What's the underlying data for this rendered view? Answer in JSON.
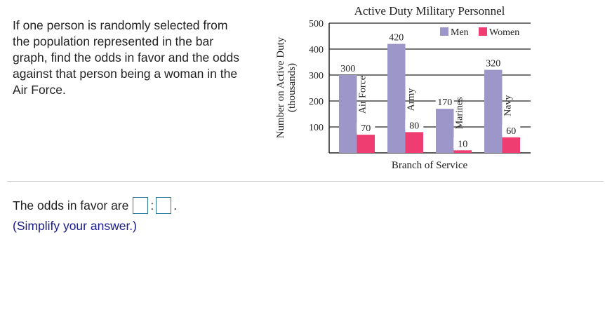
{
  "question": {
    "text": "If one person is randomly selected from the population represented in the bar graph, find the odds in favor and the odds against that person being a woman in the Air Force."
  },
  "answer": {
    "prefix": "The odds in favor are",
    "separator": ":",
    "suffix": ".",
    "hint": "(Simplify your answer.)",
    "input1_value": "",
    "input2_value": ""
  },
  "chart_data": {
    "type": "bar",
    "title": "Active Duty Military Personnel",
    "xlabel": "Branch of Service",
    "ylabel": "Number on Active Duty (thousands)",
    "ylabel_lines": [
      "Number on Active Duty",
      "(thousands)"
    ],
    "ylim": [
      0,
      500
    ],
    "yticks": [
      100,
      200,
      300,
      400,
      500
    ],
    "grid": true,
    "legend": "top-right",
    "categories": [
      "Air Force",
      "Army",
      "Marines",
      "Navy"
    ],
    "series": [
      {
        "name": "Men",
        "color": "#9d97c9",
        "values": [
          300,
          420,
          170,
          320
        ]
      },
      {
        "name": "Women",
        "color": "#ef3d72",
        "values": [
          70,
          80,
          10,
          60
        ]
      }
    ]
  }
}
